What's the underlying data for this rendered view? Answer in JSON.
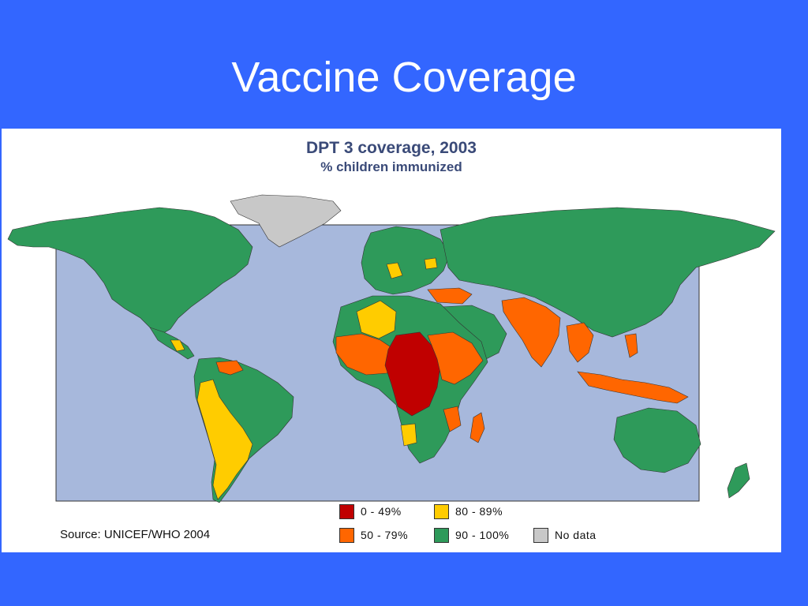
{
  "slide": {
    "title": "Vaccine Coverage"
  },
  "map": {
    "title": "DPT 3 coverage, 2003",
    "subtitle": "% children immunized",
    "source": "Source: UNICEF/WHO 2004",
    "ocean_color": "#a7b8dc",
    "legend": [
      {
        "label": "0 - 49%",
        "color": "#c00000"
      },
      {
        "label": "80 - 89%",
        "color": "#ffcc00"
      },
      {
        "label": "50 - 79%",
        "color": "#ff6600"
      },
      {
        "label": "90 - 100%",
        "color": "#2e9a5a"
      },
      {
        "label": "No data",
        "color": "#c8c8c8"
      }
    ]
  }
}
